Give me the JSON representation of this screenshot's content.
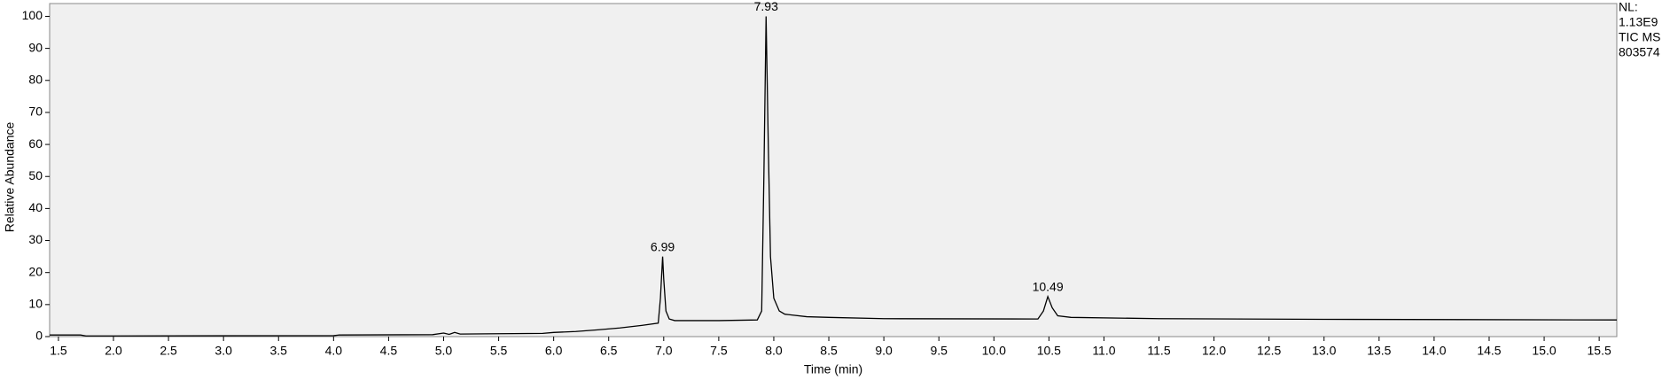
{
  "chart_data": {
    "type": "line",
    "x_label": "Time (min)",
    "y_label": "Relative Abundance",
    "info": [
      "NL:",
      "1.13E9",
      "TIC  MS",
      "803574"
    ],
    "color": "#000000",
    "x": [
      1.42,
      1.7,
      1.75,
      4.0,
      4.05,
      4.9,
      5.0,
      5.05,
      5.1,
      5.15,
      5.5,
      5.9,
      6.0,
      6.2,
      6.4,
      6.6,
      6.8,
      6.95,
      6.97,
      6.99,
      7.0,
      7.02,
      7.05,
      7.1,
      7.5,
      7.85,
      7.89,
      7.91,
      7.93,
      7.95,
      7.97,
      8.0,
      8.05,
      8.1,
      8.3,
      8.5,
      9.0,
      10.4,
      10.45,
      10.49,
      10.53,
      10.58,
      10.7,
      11.5,
      13.0,
      15.66
    ],
    "values": [
      0.5,
      0.5,
      0.2,
      0.3,
      0.5,
      0.6,
      1.1,
      0.7,
      1.3,
      0.8,
      0.9,
      1.0,
      1.3,
      1.6,
      2.1,
      2.7,
      3.5,
      4.2,
      12,
      25,
      18,
      8,
      5.5,
      5.0,
      5.0,
      5.2,
      8,
      50,
      100,
      60,
      25,
      12,
      8,
      7,
      6.2,
      6,
      5.6,
      5.5,
      8,
      12.5,
      9,
      6.5,
      6,
      5.6,
      5.4,
      5.2
    ],
    "peaks": [
      {
        "x": 6.99,
        "y": 25
      },
      {
        "x": 7.93,
        "y": 100
      },
      {
        "x": 10.49,
        "y": 12.5
      }
    ],
    "xlim": [
      1.42,
      15.66
    ],
    "ylim": [
      0,
      104
    ],
    "xticks": [
      1.5,
      {
        "value": 2,
        "label": "2.0"
      },
      2.5,
      {
        "value": 3,
        "label": "3.0"
      },
      3.5,
      {
        "value": 4,
        "label": "4.0"
      },
      4.5,
      {
        "value": 5,
        "label": "5.0"
      },
      5.5,
      {
        "value": 6,
        "label": "6.0"
      },
      6.5,
      {
        "value": 7,
        "label": "7.0"
      },
      7.5,
      {
        "value": 8,
        "label": "8.0"
      },
      8.5,
      {
        "value": 9,
        "label": "9.0"
      },
      9.5,
      {
        "value": 10,
        "label": "10.0"
      },
      10.5,
      {
        "value": 11,
        "label": "11.0"
      },
      11.5,
      {
        "value": 12,
        "label": "12.0"
      },
      12.5,
      {
        "value": 13,
        "label": "13.0"
      },
      13.5,
      {
        "value": 14,
        "label": "14.0"
      },
      14.5,
      {
        "value": 15,
        "label": "15.0"
      },
      15.5
    ],
    "yticks": [
      0,
      10,
      20,
      30,
      40,
      50,
      60,
      70,
      80,
      90,
      100
    ]
  }
}
